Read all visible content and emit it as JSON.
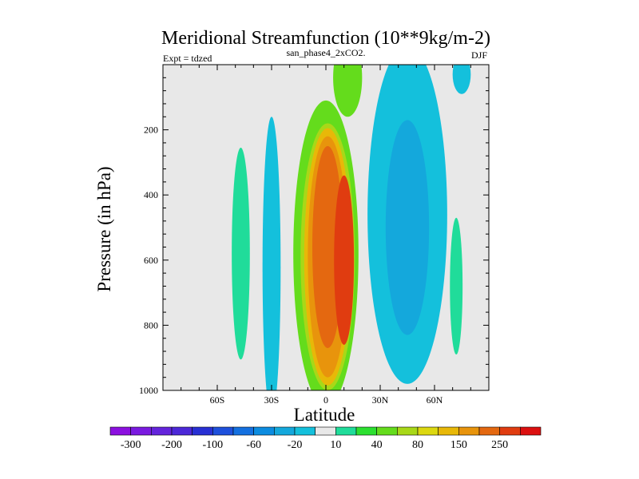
{
  "chart_data": {
    "type": "contour",
    "title": "Meridional Streamfunction (10**9kg/m-2)",
    "left_label": "Expt = tdzed",
    "center_label": "san_phase4_2xCO2.",
    "right_label": "DJF",
    "xlabel": "Latitude",
    "ylabel": "Pressure (in hPa)",
    "xlim": [
      -90,
      90
    ],
    "ylim": [
      1000,
      0
    ],
    "x_tick_labels": [
      "60S",
      "30S",
      "0",
      "30N",
      "60N"
    ],
    "x_tick_values": [
      -60,
      -30,
      0,
      30,
      60
    ],
    "y_tick_values": [
      200,
      400,
      600,
      800,
      1000
    ],
    "colorbar": {
      "levels": [
        -300,
        -250,
        -200,
        -150,
        -100,
        -80,
        -60,
        -40,
        -20,
        -10,
        10,
        20,
        40,
        60,
        80,
        100,
        150,
        200,
        250,
        300
      ],
      "labels": [
        "-300",
        "-200",
        "-100",
        "-60",
        "-20",
        "10",
        "40",
        "80",
        "150",
        "250"
      ],
      "colors": [
        "#8c10e0",
        "#7a1ae0",
        "#6424dc",
        "#4c28d8",
        "#2830d4",
        "#1e50dc",
        "#1470e0",
        "#0c8ce0",
        "#14a8dc",
        "#14c0dc",
        "#e8e8e8",
        "#20dc9a",
        "#2ce030",
        "#64dc1c",
        "#a8d818",
        "#dcd810",
        "#e8b808",
        "#e8940c",
        "#e46810",
        "#e03c10",
        "#dc1010"
      ]
    },
    "cells": [
      {
        "center": [
          -47,
          580
        ],
        "half_width": [
          5,
          325
        ],
        "value": 12
      },
      {
        "center": [
          -30,
          620
        ],
        "half_width": [
          5,
          460
        ],
        "value": -12
      },
      {
        "center": [
          0,
          580
        ],
        "half_width": [
          18,
          470
        ],
        "value": 40
      },
      {
        "center": [
          12,
          40
        ],
        "half_width": [
          8,
          120
        ],
        "value": 40
      },
      {
        "center": [
          1,
          590
        ],
        "half_width": [
          15,
          410
        ],
        "value": 60
      },
      {
        "center": [
          1,
          590
        ],
        "half_width": [
          13,
          395
        ],
        "value": 100
      },
      {
        "center": [
          1,
          590
        ],
        "half_width": [
          11,
          370
        ],
        "value": 150
      },
      {
        "center": [
          1,
          560
        ],
        "half_width": [
          8.5,
          310
        ],
        "value": 200
      },
      {
        "center": [
          10,
          600
        ],
        "half_width": [
          5.5,
          260
        ],
        "value": 250
      },
      {
        "center": [
          45,
          460
        ],
        "half_width": [
          22,
          520
        ],
        "value": -12
      },
      {
        "center": [
          45,
          500
        ],
        "half_width": [
          12,
          330
        ],
        "value": -30
      },
      {
        "center": [
          72,
          680
        ],
        "half_width": [
          3.5,
          210
        ],
        "value": 12
      },
      {
        "center": [
          75,
          30
        ],
        "half_width": [
          5,
          60
        ],
        "value": -12
      }
    ]
  }
}
